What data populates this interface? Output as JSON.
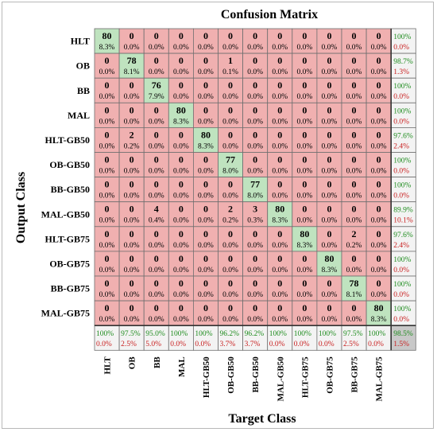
{
  "colors": {
    "correct": "#bfe3bf",
    "error": "#f0b0b0",
    "summary": "#f3f3f3",
    "total": "#c8c8c8",
    "good_text": "#1e8c1e",
    "bad_text": "#c81e1e"
  },
  "chart_data": {
    "type": "heatmap",
    "title": "Confusion Matrix",
    "xlabel": "Target Class",
    "ylabel": "Output Class",
    "output_classes": [
      "HLT",
      "OB",
      "BB",
      "MAL",
      "HLT-GB50",
      "OB-GB50",
      "BB-GB50",
      "MAL-GB50",
      "HLT-GB75",
      "OB-GB75",
      "BB-GB75",
      "MAL-GB75"
    ],
    "target_classes": [
      "HLT",
      "OB",
      "BB",
      "MAL",
      "HLT-GB50",
      "OB-GB50",
      "BB-GB50",
      "MAL-GB50",
      "HLT-GB75",
      "OB-GB75",
      "BB-GB75",
      "MAL-GB75"
    ],
    "counts": [
      [
        80,
        0,
        0,
        0,
        0,
        0,
        0,
        0,
        0,
        0,
        0,
        0
      ],
      [
        0,
        78,
        0,
        0,
        0,
        1,
        0,
        0,
        0,
        0,
        0,
        0
      ],
      [
        0,
        0,
        76,
        0,
        0,
        0,
        0,
        0,
        0,
        0,
        0,
        0
      ],
      [
        0,
        0,
        0,
        80,
        0,
        0,
        0,
        0,
        0,
        0,
        0,
        0
      ],
      [
        0,
        2,
        0,
        0,
        80,
        0,
        0,
        0,
        0,
        0,
        0,
        0
      ],
      [
        0,
        0,
        0,
        0,
        0,
        77,
        0,
        0,
        0,
        0,
        0,
        0
      ],
      [
        0,
        0,
        0,
        0,
        0,
        0,
        77,
        0,
        0,
        0,
        0,
        0
      ],
      [
        0,
        0,
        4,
        0,
        0,
        2,
        3,
        80,
        0,
        0,
        0,
        0
      ],
      [
        0,
        0,
        0,
        0,
        0,
        0,
        0,
        0,
        80,
        0,
        2,
        0
      ],
      [
        0,
        0,
        0,
        0,
        0,
        0,
        0,
        0,
        0,
        80,
        0,
        0
      ],
      [
        0,
        0,
        0,
        0,
        0,
        0,
        0,
        0,
        0,
        0,
        78,
        0
      ],
      [
        0,
        0,
        0,
        0,
        0,
        0,
        0,
        0,
        0,
        0,
        0,
        80
      ]
    ],
    "percents": [
      [
        "8.3%",
        "0.0%",
        "0.0%",
        "0.0%",
        "0.0%",
        "0.0%",
        "0.0%",
        "0.0%",
        "0.0%",
        "0.0%",
        "0.0%",
        "0.0%"
      ],
      [
        "0.0%",
        "8.1%",
        "0.0%",
        "0.0%",
        "0.0%",
        "0.1%",
        "0.0%",
        "0.0%",
        "0.0%",
        "0.0%",
        "0.0%",
        "0.0%"
      ],
      [
        "0.0%",
        "0.0%",
        "7.9%",
        "0.0%",
        "0.0%",
        "0.0%",
        "0.0%",
        "0.0%",
        "0.0%",
        "0.0%",
        "0.0%",
        "0.0%"
      ],
      [
        "0.0%",
        "0.0%",
        "0.0%",
        "8.3%",
        "0.0%",
        "0.0%",
        "0.0%",
        "0.0%",
        "0.0%",
        "0.0%",
        "0.0%",
        "0.0%"
      ],
      [
        "0.0%",
        "0.2%",
        "0.0%",
        "0.0%",
        "8.3%",
        "0.0%",
        "0.0%",
        "0.0%",
        "0.0%",
        "0.0%",
        "0.0%",
        "0.0%"
      ],
      [
        "0.0%",
        "0.0%",
        "0.0%",
        "0.0%",
        "0.0%",
        "8.0%",
        "0.0%",
        "0.0%",
        "0.0%",
        "0.0%",
        "0.0%",
        "0.0%"
      ],
      [
        "0.0%",
        "0.0%",
        "0.0%",
        "0.0%",
        "0.0%",
        "0.0%",
        "8.0%",
        "0.0%",
        "0.0%",
        "0.0%",
        "0.0%",
        "0.0%"
      ],
      [
        "0.0%",
        "0.0%",
        "0.4%",
        "0.0%",
        "0.0%",
        "0.2%",
        "0.3%",
        "8.3%",
        "0.0%",
        "0.0%",
        "0.0%",
        "0.0%"
      ],
      [
        "0.0%",
        "0.0%",
        "0.0%",
        "0.0%",
        "0.0%",
        "0.0%",
        "0.0%",
        "0.0%",
        "8.3%",
        "0.0%",
        "0.2%",
        "0.0%"
      ],
      [
        "0.0%",
        "0.0%",
        "0.0%",
        "0.0%",
        "0.0%",
        "0.0%",
        "0.0%",
        "0.0%",
        "0.0%",
        "8.3%",
        "0.0%",
        "0.0%"
      ],
      [
        "0.0%",
        "0.0%",
        "0.0%",
        "0.0%",
        "0.0%",
        "0.0%",
        "0.0%",
        "0.0%",
        "0.0%",
        "0.0%",
        "8.1%",
        "0.0%"
      ],
      [
        "0.0%",
        "0.0%",
        "0.0%",
        "0.0%",
        "0.0%",
        "0.0%",
        "0.0%",
        "0.0%",
        "0.0%",
        "0.0%",
        "0.0%",
        "8.3%"
      ]
    ],
    "row_summary": [
      [
        "100%",
        "0.0%"
      ],
      [
        "98.7%",
        "1.3%"
      ],
      [
        "100%",
        "0.0%"
      ],
      [
        "100%",
        "0.0%"
      ],
      [
        "97.6%",
        "2.4%"
      ],
      [
        "100%",
        "0.0%"
      ],
      [
        "100%",
        "0.0%"
      ],
      [
        "89.9%",
        "10.1%"
      ],
      [
        "97.6%",
        "2.4%"
      ],
      [
        "100%",
        "0.0%"
      ],
      [
        "100%",
        "0.0%"
      ],
      [
        "100%",
        "0.0%"
      ]
    ],
    "col_summary": [
      [
        "100%",
        "0.0%"
      ],
      [
        "97.5%",
        "2.5%"
      ],
      [
        "95.0%",
        "5.0%"
      ],
      [
        "100%",
        "0.0%"
      ],
      [
        "100%",
        "0.0%"
      ],
      [
        "96.2%",
        "3.7%"
      ],
      [
        "96.2%",
        "3.7%"
      ],
      [
        "100%",
        "0.0%"
      ],
      [
        "100%",
        "0.0%"
      ],
      [
        "100%",
        "0.0%"
      ],
      [
        "97.5%",
        "2.5%"
      ],
      [
        "100%",
        "0.0%"
      ]
    ],
    "total_summary": [
      "98.5%",
      "1.5%"
    ]
  }
}
